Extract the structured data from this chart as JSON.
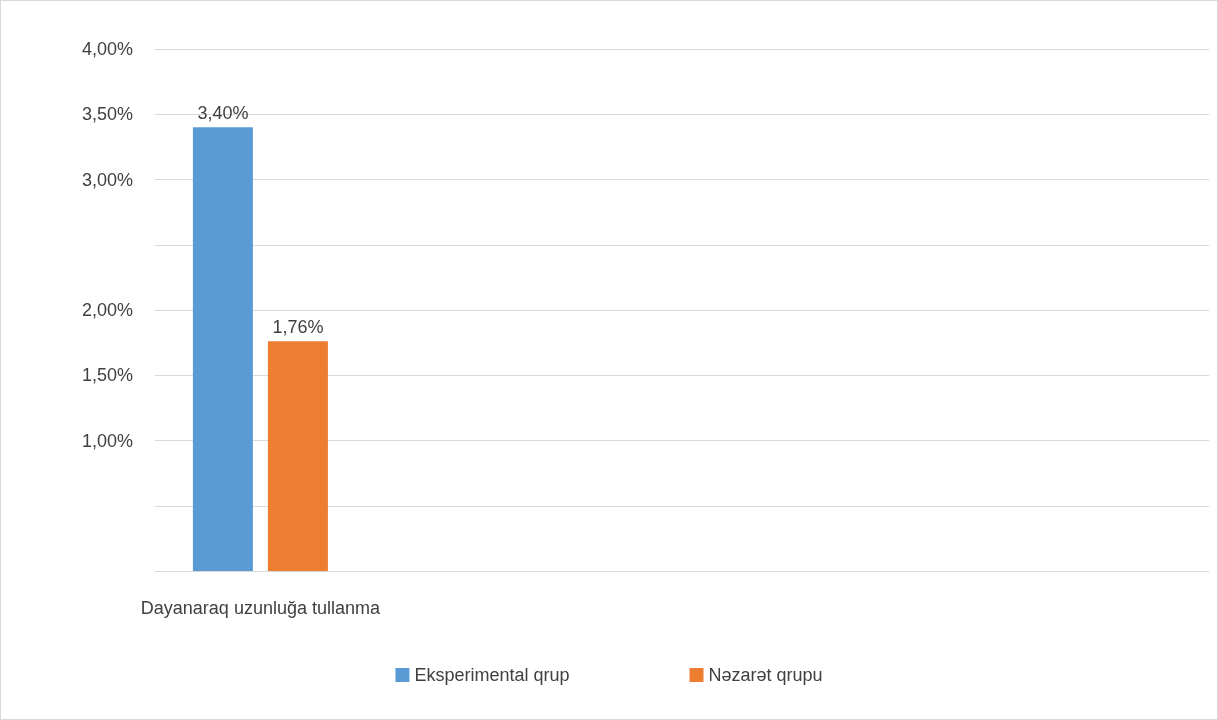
{
  "chart_data": {
    "type": "bar",
    "categories": [
      "Dayanaraq uzunluğa tullanma",
      null,
      null,
      null,
      null
    ],
    "series": [
      {
        "name": "Eksperimental qrup",
        "color": "#5b9bd5",
        "values": [
          3.4,
          null,
          null,
          null,
          null
        ],
        "value_labels": [
          "3,40%",
          null,
          null,
          null,
          null
        ]
      },
      {
        "name": "Nəzarət qrupu",
        "color": "#ed7d31",
        "values": [
          1.76,
          null,
          null,
          null,
          null
        ],
        "value_labels": [
          "1,76%",
          null,
          null,
          null,
          null
        ]
      }
    ],
    "ylim": [
      0,
      4
    ],
    "yticks": [
      {
        "value": 0,
        "label": null
      },
      {
        "value": 0.5,
        "label": null
      },
      {
        "value": 1,
        "label": "1,00%"
      },
      {
        "value": 1.5,
        "label": "1,50%"
      },
      {
        "value": 2,
        "label": "2,00%"
      },
      {
        "value": 2.5,
        "label": null
      },
      {
        "value": 3,
        "label": "3,00%"
      },
      {
        "value": 3.5,
        "label": "3,50%"
      },
      {
        "value": 4,
        "label": "4,00%"
      }
    ],
    "grid": "y",
    "legend": "bottom"
  }
}
